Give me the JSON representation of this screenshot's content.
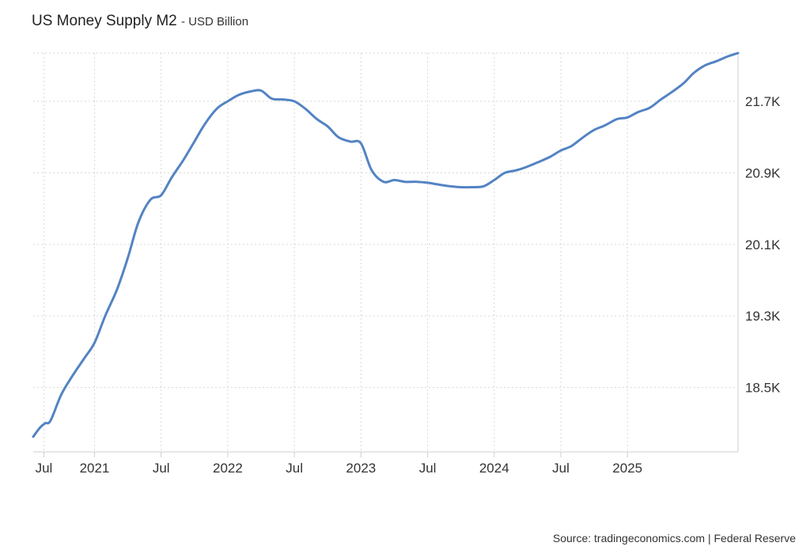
{
  "chart_data": {
    "type": "line",
    "title": "US Money Supply M2",
    "subtitle": "- USD Billion",
    "source": "Source: tradingeconomics.com | Federal Reserve",
    "series_color": "#5383c3",
    "xlim": [
      2020.54,
      2025.83
    ],
    "ylim": [
      17.78,
      22.24
    ],
    "yticks": [
      {
        "value": 18.5,
        "label": "18.5K"
      },
      {
        "value": 19.3,
        "label": "19.3K"
      },
      {
        "value": 20.1,
        "label": "20.1K"
      },
      {
        "value": 20.9,
        "label": "20.9K"
      },
      {
        "value": 21.7,
        "label": "21.7K"
      }
    ],
    "xticks": [
      {
        "value": 2020.62,
        "label": "Jul"
      },
      {
        "value": 2021.0,
        "label": "2021"
      },
      {
        "value": 2021.5,
        "label": "Jul"
      },
      {
        "value": 2022.0,
        "label": "2022"
      },
      {
        "value": 2022.5,
        "label": "Jul"
      },
      {
        "value": 2023.0,
        "label": "2023"
      },
      {
        "value": 2023.5,
        "label": "Jul"
      },
      {
        "value": 2024.0,
        "label": "2024"
      },
      {
        "value": 2024.5,
        "label": "Jul"
      },
      {
        "value": 2025.0,
        "label": "2025"
      }
    ],
    "x": [
      2020.54,
      2020.59,
      2020.63,
      2020.67,
      2020.75,
      2020.83,
      2020.92,
      2021.0,
      2021.08,
      2021.17,
      2021.25,
      2021.33,
      2021.42,
      2021.5,
      2021.58,
      2021.67,
      2021.75,
      2021.83,
      2021.92,
      2022.0,
      2022.08,
      2022.17,
      2022.25,
      2022.33,
      2022.42,
      2022.5,
      2022.58,
      2022.67,
      2022.75,
      2022.83,
      2022.92,
      2023.0,
      2023.08,
      2023.17,
      2023.25,
      2023.33,
      2023.42,
      2023.5,
      2023.58,
      2023.67,
      2023.75,
      2023.83,
      2023.92,
      2024.0,
      2024.08,
      2024.17,
      2024.25,
      2024.33,
      2024.42,
      2024.5,
      2024.58,
      2024.67,
      2024.75,
      2024.83,
      2024.92,
      2025.0,
      2025.08,
      2025.17,
      2025.25,
      2025.33,
      2025.42,
      2025.5,
      2025.58,
      2025.67,
      2025.75,
      2025.83
    ],
    "values": [
      17.95,
      18.05,
      18.1,
      18.13,
      18.42,
      18.62,
      18.82,
      19.0,
      19.3,
      19.6,
      19.95,
      20.35,
      20.6,
      20.65,
      20.85,
      21.05,
      21.25,
      21.45,
      21.62,
      21.7,
      21.77,
      21.81,
      21.82,
      21.73,
      21.72,
      21.7,
      21.62,
      21.5,
      21.42,
      21.3,
      21.25,
      21.23,
      20.93,
      20.8,
      20.82,
      20.8,
      20.8,
      20.79,
      20.77,
      20.75,
      20.74,
      20.74,
      20.75,
      20.82,
      20.9,
      20.93,
      20.97,
      21.02,
      21.08,
      21.15,
      21.2,
      21.3,
      21.38,
      21.43,
      21.5,
      21.52,
      21.58,
      21.63,
      21.72,
      21.8,
      21.9,
      22.02,
      22.1,
      22.15,
      22.2,
      22.24
    ]
  }
}
